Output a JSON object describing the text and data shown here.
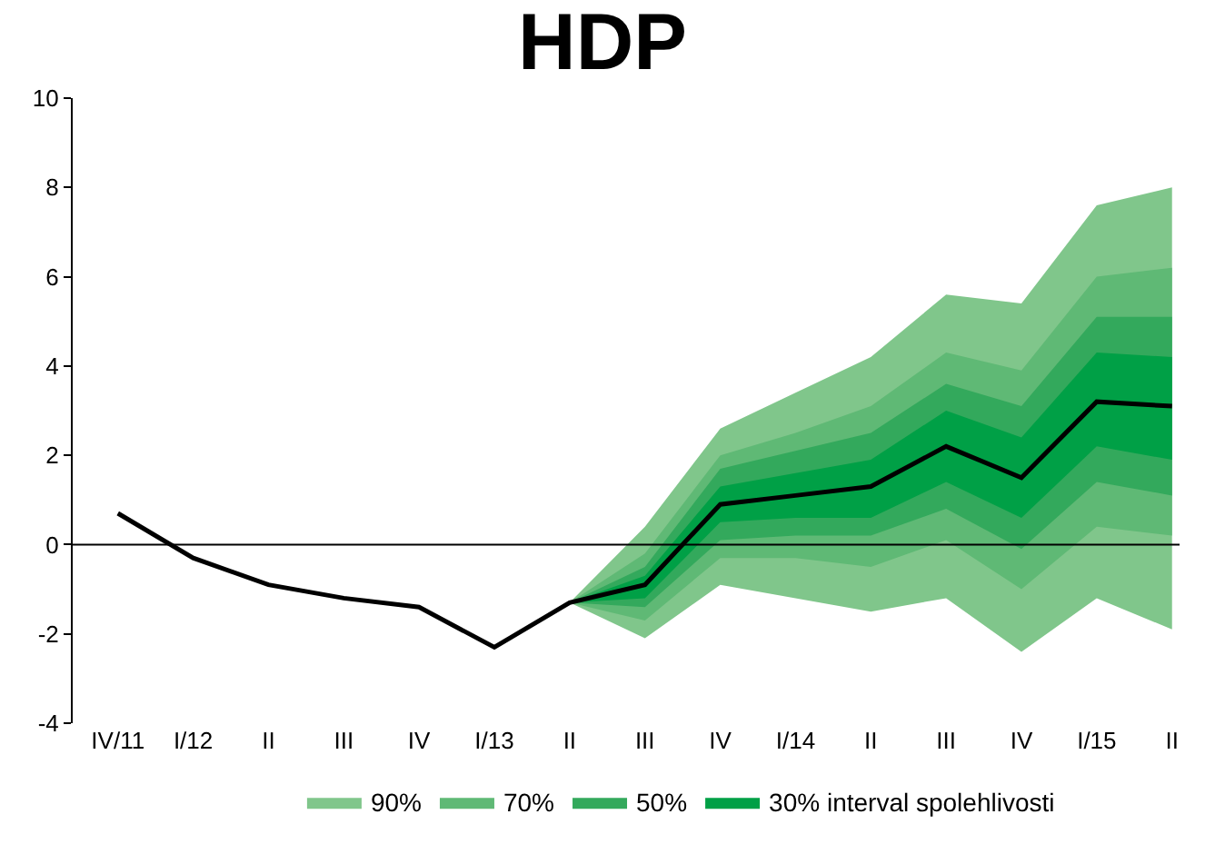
{
  "chart_data": {
    "type": "line",
    "title": "HDP",
    "categories": [
      "IV/11",
      "I/12",
      "II",
      "III",
      "IV",
      "I/13",
      "II",
      "III",
      "IV",
      "I/14",
      "II",
      "III",
      "IV",
      "I/15",
      "II"
    ],
    "series": [
      {
        "name": "90%",
        "color": "#80c68b",
        "values": [
          null,
          null,
          null,
          null,
          null,
          null,
          null,
          null,
          null,
          null,
          null,
          null,
          null,
          null,
          null
        ],
        "lower": [
          null,
          null,
          null,
          null,
          null,
          null,
          -1.3,
          -2.1,
          -0.9,
          -1.2,
          -1.5,
          -1.2,
          -2.4,
          -1.2,
          -1.9
        ],
        "upper": [
          null,
          null,
          null,
          null,
          null,
          null,
          -1.3,
          0.4,
          2.6,
          3.4,
          4.2,
          5.6,
          5.4,
          7.6,
          8.0
        ]
      },
      {
        "name": "70%",
        "color": "#5fb975",
        "values": [
          null,
          null,
          null,
          null,
          null,
          null,
          null,
          null,
          null,
          null,
          null,
          null,
          null,
          null,
          null
        ],
        "lower": [
          null,
          null,
          null,
          null,
          null,
          null,
          -1.3,
          -1.7,
          -0.3,
          -0.3,
          -0.5,
          0.1,
          -1.0,
          0.4,
          0.2
        ],
        "upper": [
          null,
          null,
          null,
          null,
          null,
          null,
          -1.3,
          -0.2,
          2.0,
          2.5,
          3.1,
          4.3,
          3.9,
          6.0,
          6.2
        ]
      },
      {
        "name": "50%",
        "color": "#33a95c",
        "values": [
          null,
          null,
          null,
          null,
          null,
          null,
          null,
          null,
          null,
          null,
          null,
          null,
          null,
          null,
          null
        ],
        "lower": [
          null,
          null,
          null,
          null,
          null,
          null,
          -1.3,
          -1.4,
          0.1,
          0.2,
          0.2,
          0.8,
          -0.1,
          1.4,
          1.1
        ],
        "upper": [
          null,
          null,
          null,
          null,
          null,
          null,
          -1.3,
          -0.5,
          1.7,
          2.1,
          2.5,
          3.6,
          3.1,
          5.1,
          5.1
        ]
      },
      {
        "name": "30% interval spolehlivosti",
        "color": "#00a046",
        "values": [
          null,
          null,
          null,
          null,
          null,
          null,
          null,
          null,
          null,
          null,
          null,
          null,
          null,
          null,
          null
        ],
        "lower": [
          null,
          null,
          null,
          null,
          null,
          null,
          -1.3,
          -1.2,
          0.5,
          0.6,
          0.6,
          1.4,
          0.6,
          2.2,
          1.9
        ],
        "upper": [
          null,
          null,
          null,
          null,
          null,
          null,
          -1.3,
          -0.7,
          1.3,
          1.6,
          1.9,
          3.0,
          2.4,
          4.3,
          4.2
        ]
      },
      {
        "type": "line",
        "color": "#000000",
        "values": [
          0.7,
          -0.3,
          -0.9,
          -1.2,
          -1.4,
          -2.3,
          -1.3,
          -0.9,
          0.9,
          1.1,
          1.3,
          2.2,
          1.5,
          3.2,
          3.1
        ]
      }
    ],
    "ylim": [
      -4,
      10
    ],
    "yticks": [
      -4,
      -2,
      0,
      2,
      4,
      6,
      8,
      10
    ],
    "ref_lines": [
      {
        "axis": "y",
        "value": 0,
        "color": "#000000"
      }
    ],
    "grid": false,
    "legend": "bottom",
    "marker": "none",
    "line_style": "solid"
  }
}
